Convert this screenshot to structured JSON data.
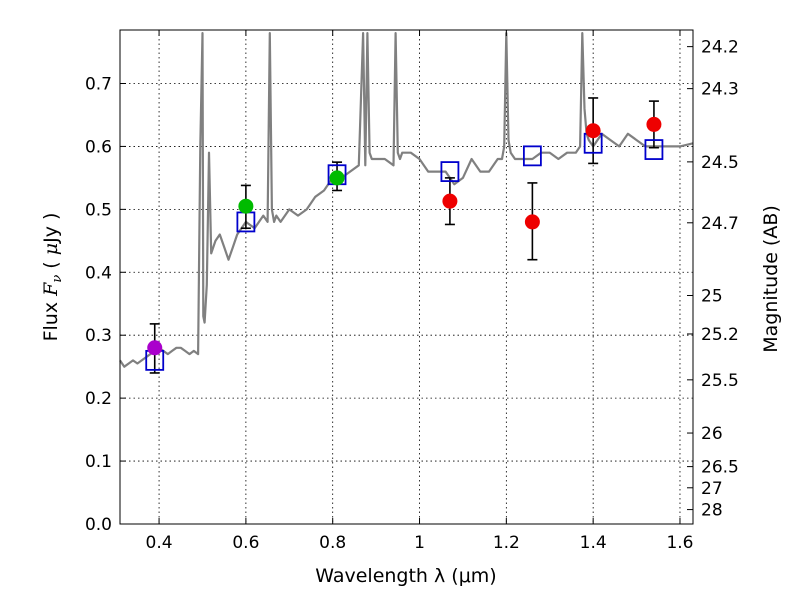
{
  "chart_data": {
    "type": "scatter",
    "title": "",
    "xlabel": "Wavelength  λ (μm)",
    "ylabel": "Flux  F_ν  ( μJy )",
    "ylabel_right": "Magnitude (AB)",
    "xlim": [
      0.31,
      1.63
    ],
    "ylim": [
      0.0,
      0.785
    ],
    "grid": true,
    "x_ticks": [
      0.4,
      0.6,
      0.8,
      1.0,
      1.2,
      1.4,
      1.6
    ],
    "x_tick_labels": [
      "0.4",
      "0.6",
      "0.8",
      "1",
      "1.2",
      "1.4",
      "1.6"
    ],
    "y_ticks": [
      0.0,
      0.1,
      0.2,
      0.3,
      0.4,
      0.5,
      0.6,
      0.7
    ],
    "y_tick_labels": [
      "0.0",
      "0.1",
      "0.2",
      "0.3",
      "0.4",
      "0.5",
      "0.6",
      "0.7"
    ],
    "right_ticks": [
      {
        "label": "24.2",
        "mag": 24.2
      },
      {
        "label": "24.3",
        "mag": 24.3
      },
      {
        "label": "24.5",
        "mag": 24.5
      },
      {
        "label": "24.7",
        "mag": 24.7
      },
      {
        "label": "25",
        "mag": 25.0
      },
      {
        "label": "25.2",
        "mag": 25.2
      },
      {
        "label": "25.5",
        "mag": 25.5
      },
      {
        "label": "26",
        "mag": 26.0
      },
      {
        "label": "26.5",
        "mag": 26.5
      },
      {
        "label": "27",
        "mag": 27.0
      },
      {
        "label": "28",
        "mag": 28.0
      }
    ],
    "colors": {
      "model_line": "#808080",
      "model_points": "#0000cc",
      "purple": "#aa00cc",
      "green": "#00bb00",
      "red": "#ee0000",
      "errorbar": "#000000"
    },
    "series": [
      {
        "name": "model spectrum",
        "kind": "line",
        "x": [
          0.31,
          0.32,
          0.33,
          0.34,
          0.35,
          0.36,
          0.37,
          0.38,
          0.39,
          0.4,
          0.41,
          0.42,
          0.43,
          0.44,
          0.45,
          0.46,
          0.47,
          0.48,
          0.49,
          0.495,
          0.5,
          0.502,
          0.505,
          0.51,
          0.515,
          0.52,
          0.525,
          0.53,
          0.54,
          0.55,
          0.56,
          0.57,
          0.58,
          0.59,
          0.6,
          0.62,
          0.64,
          0.65,
          0.655,
          0.66,
          0.665,
          0.67,
          0.68,
          0.7,
          0.72,
          0.74,
          0.76,
          0.78,
          0.8,
          0.82,
          0.84,
          0.86,
          0.87,
          0.875,
          0.88,
          0.885,
          0.89,
          0.9,
          0.92,
          0.94,
          0.945,
          0.95,
          0.955,
          0.96,
          0.98,
          1.0,
          1.02,
          1.04,
          1.06,
          1.08,
          1.1,
          1.12,
          1.14,
          1.16,
          1.18,
          1.19,
          1.195,
          1.2,
          1.205,
          1.21,
          1.22,
          1.24,
          1.26,
          1.28,
          1.3,
          1.32,
          1.34,
          1.36,
          1.37,
          1.375,
          1.38,
          1.385,
          1.39,
          1.4,
          1.42,
          1.44,
          1.46,
          1.48,
          1.5,
          1.52,
          1.54,
          1.56,
          1.58,
          1.6,
          1.63
        ],
        "y": [
          0.26,
          0.25,
          0.255,
          0.26,
          0.255,
          0.26,
          0.265,
          0.27,
          0.275,
          0.28,
          0.275,
          0.27,
          0.275,
          0.28,
          0.28,
          0.275,
          0.27,
          0.275,
          0.27,
          0.6,
          0.78,
          0.33,
          0.32,
          0.38,
          0.59,
          0.43,
          0.44,
          0.45,
          0.46,
          0.44,
          0.42,
          0.44,
          0.46,
          0.47,
          0.48,
          0.47,
          0.49,
          0.48,
          0.78,
          0.5,
          0.48,
          0.49,
          0.48,
          0.5,
          0.49,
          0.5,
          0.52,
          0.53,
          0.55,
          0.55,
          0.56,
          0.57,
          0.78,
          0.57,
          0.78,
          0.59,
          0.58,
          0.58,
          0.58,
          0.57,
          0.78,
          0.59,
          0.58,
          0.59,
          0.59,
          0.58,
          0.56,
          0.56,
          0.56,
          0.54,
          0.55,
          0.58,
          0.56,
          0.56,
          0.58,
          0.58,
          0.6,
          0.78,
          0.61,
          0.59,
          0.58,
          0.58,
          0.58,
          0.59,
          0.59,
          0.58,
          0.59,
          0.59,
          0.6,
          0.78,
          0.66,
          0.62,
          0.61,
          0.6,
          0.62,
          0.61,
          0.6,
          0.62,
          0.61,
          0.6,
          0.6,
          0.6,
          0.6,
          0.6,
          0.605
        ]
      },
      {
        "name": "model photometry",
        "kind": "open-square",
        "x": [
          0.39,
          0.6,
          0.81,
          1.07,
          1.26,
          1.4,
          1.54
        ],
        "y": [
          0.26,
          0.48,
          0.555,
          0.56,
          0.585,
          0.605,
          0.595
        ]
      },
      {
        "name": "observed",
        "kind": "filled-circle",
        "points": [
          {
            "x": 0.39,
            "y": 0.28,
            "err_lo": 0.04,
            "err_hi": 0.038,
            "color": "purple"
          },
          {
            "x": 0.6,
            "y": 0.505,
            "err_lo": 0.035,
            "err_hi": 0.033,
            "color": "green"
          },
          {
            "x": 0.81,
            "y": 0.55,
            "err_lo": 0.02,
            "err_hi": 0.025,
            "color": "green"
          },
          {
            "x": 1.07,
            "y": 0.513,
            "err_lo": 0.037,
            "err_hi": 0.037,
            "color": "red"
          },
          {
            "x": 1.26,
            "y": 0.48,
            "err_lo": 0.06,
            "err_hi": 0.062,
            "color": "red"
          },
          {
            "x": 1.4,
            "y": 0.625,
            "err_lo": 0.052,
            "err_hi": 0.052,
            "color": "red"
          },
          {
            "x": 1.54,
            "y": 0.635,
            "err_lo": 0.037,
            "err_hi": 0.037,
            "color": "red"
          }
        ]
      }
    ]
  }
}
